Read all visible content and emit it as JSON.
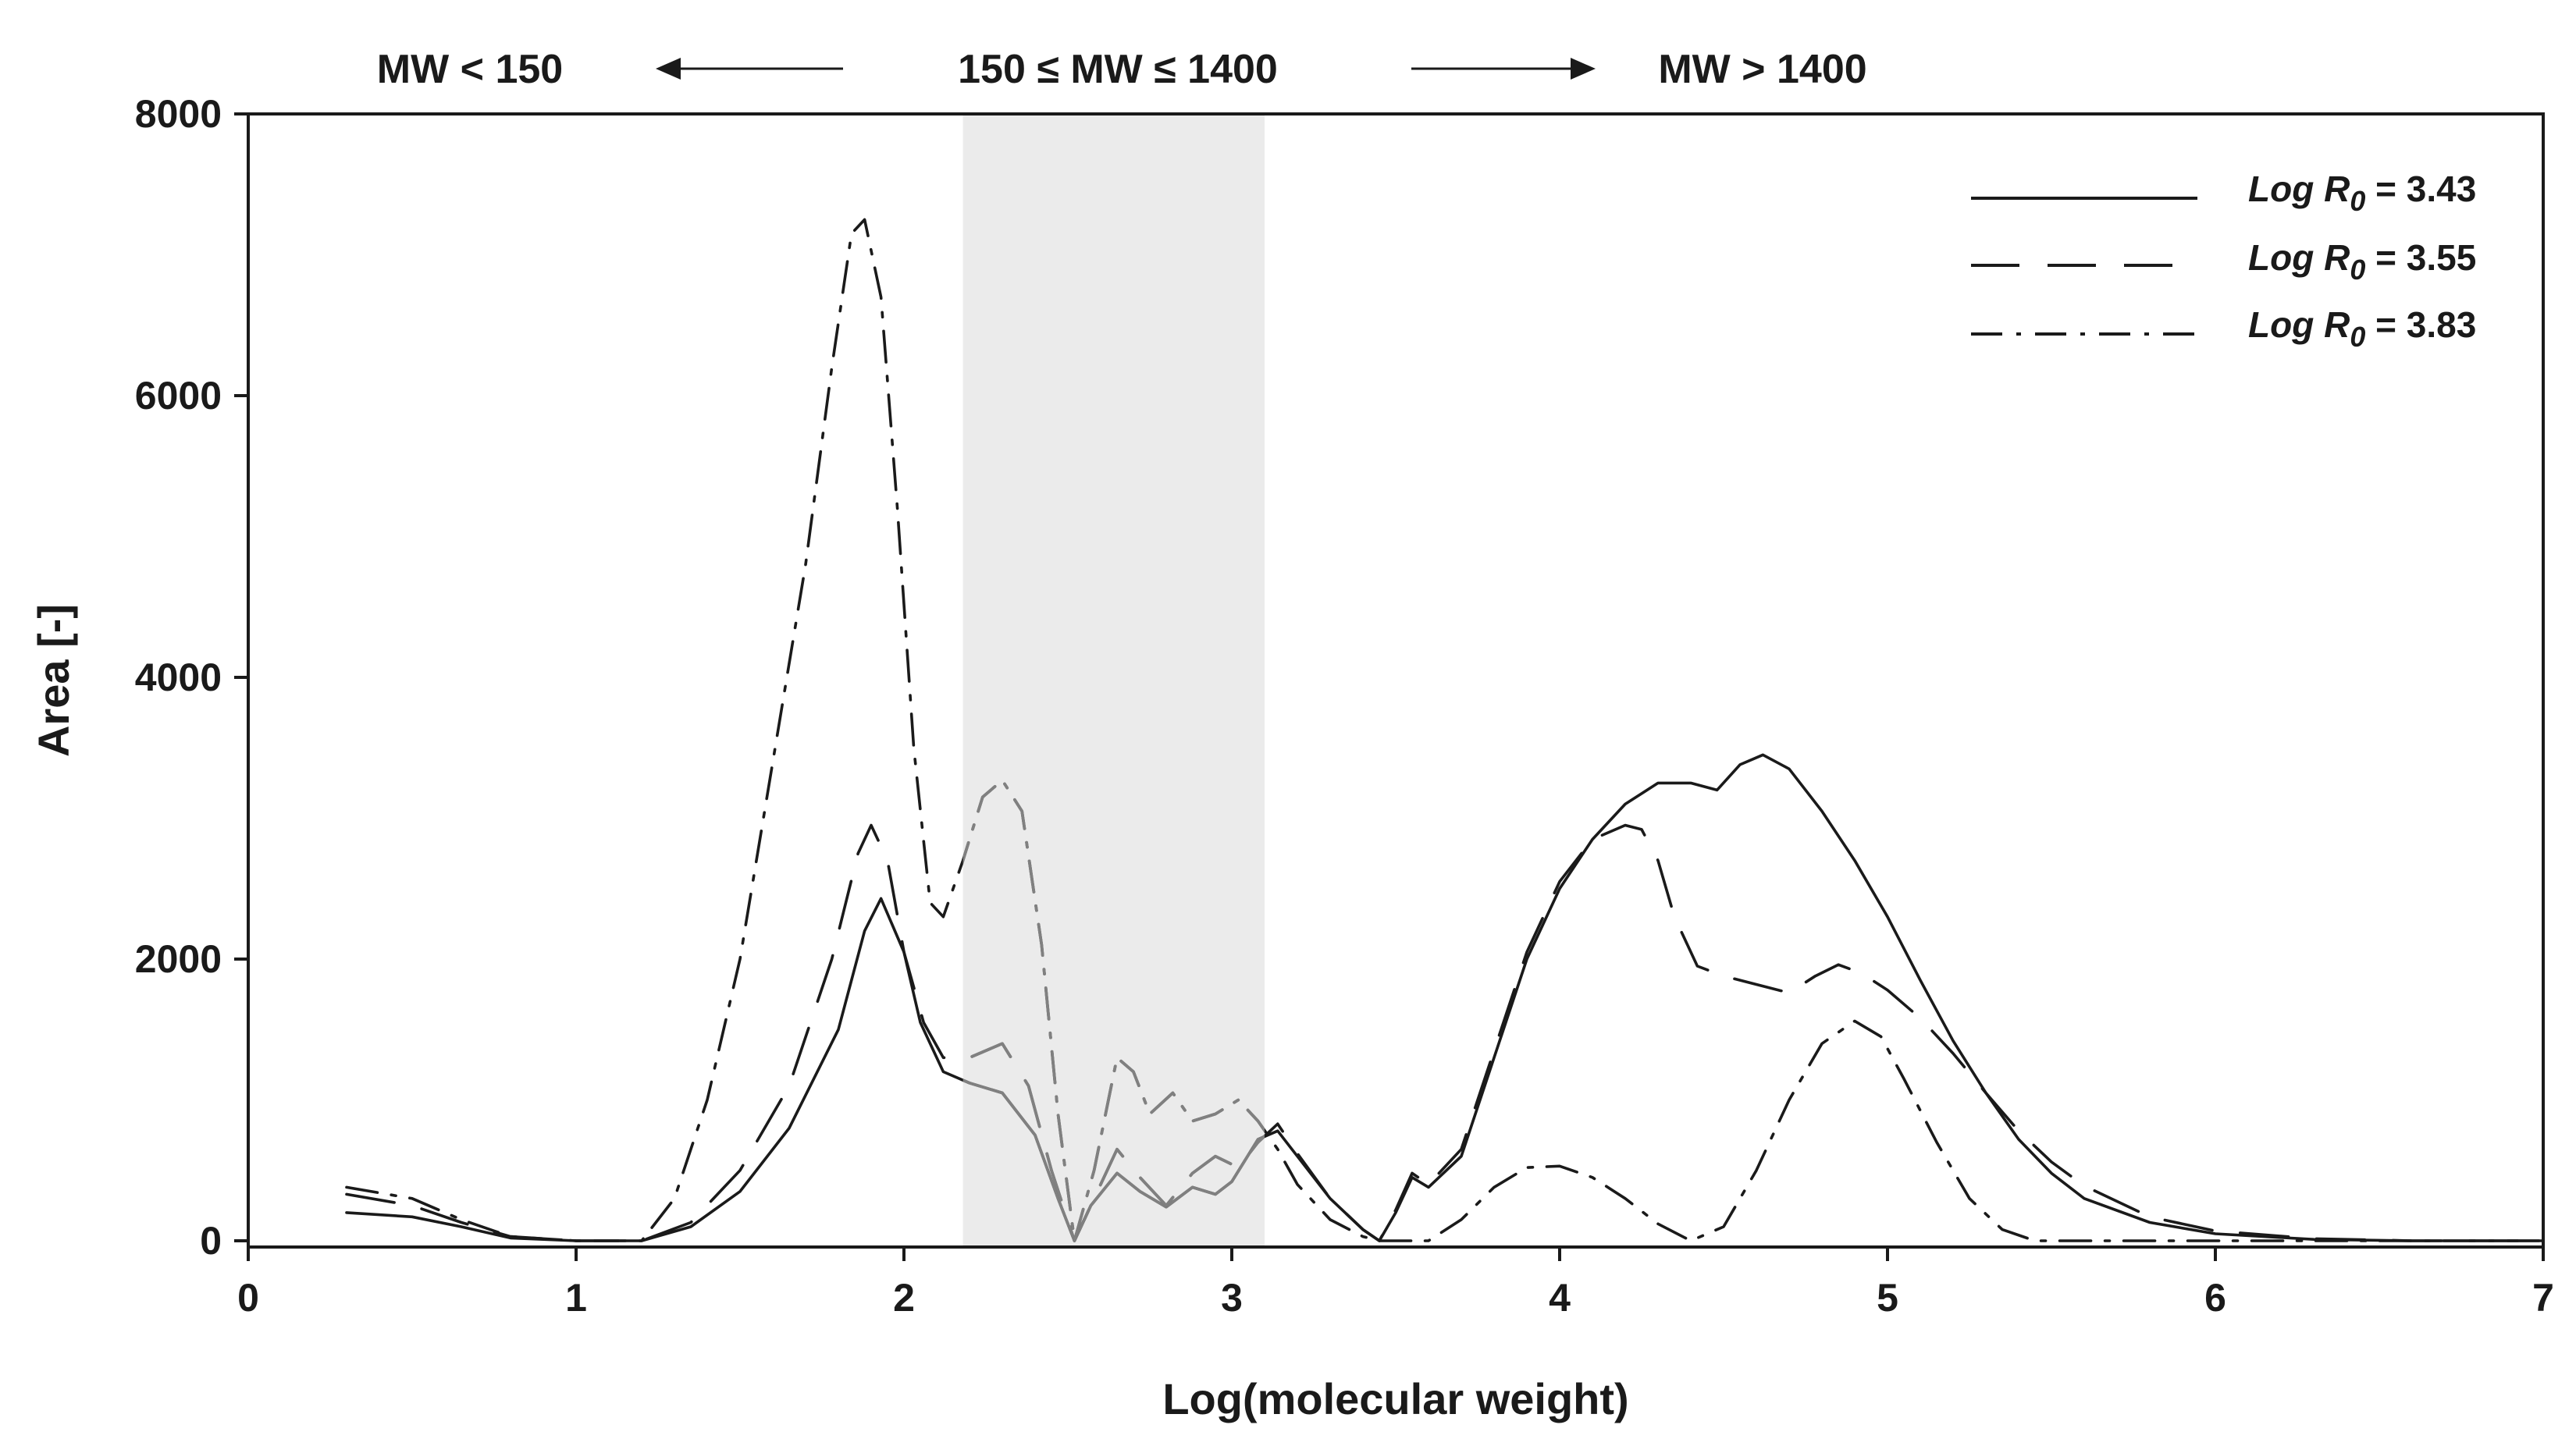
{
  "chart_data": {
    "type": "line",
    "title": "",
    "xlabel": "Log(molecular weight)",
    "ylabel": "Area [-]",
    "xlim": [
      0,
      7
    ],
    "ylim": [
      0,
      8000
    ],
    "xticks": [
      0,
      1,
      2,
      3,
      4,
      5,
      6,
      7
    ],
    "xtick_labels": [
      "0",
      "1",
      "2",
      "3",
      "4",
      "5",
      "6",
      "7"
    ],
    "yticks": [
      0,
      2000,
      4000,
      6000,
      8000
    ],
    "ytick_labels": [
      "0",
      "2000",
      "4000",
      "6000",
      "8000"
    ],
    "grid": false,
    "legend_position": "top-right",
    "shaded_region": {
      "x_start": 2.18,
      "x_end": 3.1,
      "color": "#ebebeb"
    },
    "annotations": {
      "left": "MW < 150",
      "middle": "150 ≤ MW ≤ 1400",
      "right": "MW > 1400"
    },
    "series": [
      {
        "name": "Log R0 = 3.43",
        "legend_prefix": "Log ",
        "legend_symbol": "R",
        "legend_subscript": "0",
        "legend_value": " = 3.43",
        "dash": "solid",
        "points": [
          [
            0.3,
            200
          ],
          [
            0.5,
            170
          ],
          [
            0.65,
            100
          ],
          [
            0.8,
            20
          ],
          [
            1.0,
            0
          ],
          [
            1.2,
            0
          ],
          [
            1.35,
            100
          ],
          [
            1.5,
            350
          ],
          [
            1.65,
            800
          ],
          [
            1.8,
            1500
          ],
          [
            1.88,
            2200
          ],
          [
            1.93,
            2430
          ],
          [
            2.0,
            2050
          ],
          [
            2.05,
            1550
          ],
          [
            2.12,
            1200
          ],
          [
            2.2,
            1120
          ],
          [
            2.3,
            1050
          ],
          [
            2.4,
            750
          ],
          [
            2.47,
            300
          ],
          [
            2.52,
            0
          ],
          [
            2.57,
            250
          ],
          [
            2.65,
            480
          ],
          [
            2.72,
            350
          ],
          [
            2.8,
            240
          ],
          [
            2.88,
            380
          ],
          [
            2.95,
            330
          ],
          [
            3.0,
            420
          ],
          [
            3.08,
            720
          ],
          [
            3.14,
            780
          ],
          [
            3.2,
            600
          ],
          [
            3.3,
            300
          ],
          [
            3.4,
            80
          ],
          [
            3.45,
            0
          ],
          [
            3.5,
            200
          ],
          [
            3.55,
            450
          ],
          [
            3.6,
            380
          ],
          [
            3.7,
            600
          ],
          [
            3.8,
            1300
          ],
          [
            3.9,
            2000
          ],
          [
            4.0,
            2500
          ],
          [
            4.1,
            2850
          ],
          [
            4.2,
            3100
          ],
          [
            4.3,
            3250
          ],
          [
            4.4,
            3250
          ],
          [
            4.48,
            3200
          ],
          [
            4.55,
            3380
          ],
          [
            4.62,
            3450
          ],
          [
            4.7,
            3350
          ],
          [
            4.8,
            3050
          ],
          [
            4.9,
            2700
          ],
          [
            5.0,
            2300
          ],
          [
            5.1,
            1850
          ],
          [
            5.2,
            1420
          ],
          [
            5.3,
            1050
          ],
          [
            5.4,
            720
          ],
          [
            5.5,
            480
          ],
          [
            5.6,
            300
          ],
          [
            5.8,
            130
          ],
          [
            6.0,
            50
          ],
          [
            6.3,
            10
          ],
          [
            6.6,
            0
          ],
          [
            7.0,
            0
          ]
        ]
      },
      {
        "name": "Log R0 = 3.55",
        "legend_prefix": "Log ",
        "legend_symbol": "R",
        "legend_subscript": "0",
        "legend_value": " = 3.55",
        "dash": "dashed",
        "points": [
          [
            0.3,
            330
          ],
          [
            0.5,
            250
          ],
          [
            0.65,
            130
          ],
          [
            0.8,
            30
          ],
          [
            1.0,
            0
          ],
          [
            1.2,
            0
          ],
          [
            1.35,
            130
          ],
          [
            1.5,
            500
          ],
          [
            1.65,
            1100
          ],
          [
            1.78,
            2000
          ],
          [
            1.86,
            2750
          ],
          [
            1.9,
            2950
          ],
          [
            1.95,
            2700
          ],
          [
            2.0,
            2050
          ],
          [
            2.06,
            1550
          ],
          [
            2.12,
            1300
          ],
          [
            2.2,
            1300
          ],
          [
            2.3,
            1400
          ],
          [
            2.38,
            1100
          ],
          [
            2.45,
            500
          ],
          [
            2.52,
            0
          ],
          [
            2.58,
            300
          ],
          [
            2.65,
            650
          ],
          [
            2.72,
            450
          ],
          [
            2.8,
            250
          ],
          [
            2.88,
            480
          ],
          [
            2.95,
            600
          ],
          [
            3.02,
            520
          ],
          [
            3.08,
            700
          ],
          [
            3.14,
            830
          ],
          [
            3.2,
            620
          ],
          [
            3.3,
            300
          ],
          [
            3.4,
            80
          ],
          [
            3.45,
            0
          ],
          [
            3.5,
            220
          ],
          [
            3.55,
            480
          ],
          [
            3.6,
            400
          ],
          [
            3.7,
            650
          ],
          [
            3.8,
            1350
          ],
          [
            3.9,
            2050
          ],
          [
            4.0,
            2550
          ],
          [
            4.1,
            2850
          ],
          [
            4.2,
            2950
          ],
          [
            4.25,
            2920
          ],
          [
            4.3,
            2700
          ],
          [
            4.35,
            2300
          ],
          [
            4.42,
            1950
          ],
          [
            4.5,
            1880
          ],
          [
            4.6,
            1820
          ],
          [
            4.7,
            1760
          ],
          [
            4.78,
            1880
          ],
          [
            4.85,
            1960
          ],
          [
            4.92,
            1900
          ],
          [
            5.0,
            1780
          ],
          [
            5.1,
            1580
          ],
          [
            5.2,
            1330
          ],
          [
            5.3,
            1050
          ],
          [
            5.4,
            780
          ],
          [
            5.5,
            560
          ],
          [
            5.6,
            390
          ],
          [
            5.8,
            170
          ],
          [
            6.0,
            70
          ],
          [
            6.3,
            15
          ],
          [
            6.6,
            0
          ],
          [
            7.0,
            0
          ]
        ]
      },
      {
        "name": "Log R0 = 3.83",
        "legend_prefix": "Log ",
        "legend_symbol": "R",
        "legend_subscript": "0",
        "legend_value": " = 3.83",
        "dash": "dashdot",
        "points": [
          [
            0.3,
            380
          ],
          [
            0.5,
            300
          ],
          [
            0.65,
            150
          ],
          [
            0.8,
            30
          ],
          [
            1.0,
            0
          ],
          [
            1.2,
            0
          ],
          [
            1.3,
            300
          ],
          [
            1.4,
            1000
          ],
          [
            1.5,
            2000
          ],
          [
            1.6,
            3400
          ],
          [
            1.7,
            4800
          ],
          [
            1.78,
            6200
          ],
          [
            1.84,
            7150
          ],
          [
            1.88,
            7250
          ],
          [
            1.93,
            6700
          ],
          [
            1.98,
            5200
          ],
          [
            2.03,
            3500
          ],
          [
            2.08,
            2400
          ],
          [
            2.12,
            2300
          ],
          [
            2.18,
            2700
          ],
          [
            2.24,
            3150
          ],
          [
            2.3,
            3270
          ],
          [
            2.36,
            3050
          ],
          [
            2.42,
            2100
          ],
          [
            2.47,
            900
          ],
          [
            2.52,
            0
          ],
          [
            2.58,
            500
          ],
          [
            2.65,
            1300
          ],
          [
            2.7,
            1200
          ],
          [
            2.75,
            900
          ],
          [
            2.82,
            1050
          ],
          [
            2.88,
            850
          ],
          [
            2.95,
            900
          ],
          [
            3.02,
            1000
          ],
          [
            3.08,
            850
          ],
          [
            3.14,
            650
          ],
          [
            3.2,
            400
          ],
          [
            3.3,
            150
          ],
          [
            3.4,
            30
          ],
          [
            3.45,
            0
          ],
          [
            3.6,
            0
          ],
          [
            3.7,
            150
          ],
          [
            3.8,
            380
          ],
          [
            3.9,
            520
          ],
          [
            4.0,
            530
          ],
          [
            4.1,
            450
          ],
          [
            4.2,
            300
          ],
          [
            4.3,
            120
          ],
          [
            4.4,
            0
          ],
          [
            4.5,
            100
          ],
          [
            4.6,
            500
          ],
          [
            4.7,
            1000
          ],
          [
            4.8,
            1400
          ],
          [
            4.9,
            1560
          ],
          [
            4.98,
            1450
          ],
          [
            5.05,
            1150
          ],
          [
            5.15,
            700
          ],
          [
            5.25,
            300
          ],
          [
            5.35,
            80
          ],
          [
            5.45,
            0
          ],
          [
            5.6,
            0
          ],
          [
            7.0,
            0
          ]
        ]
      }
    ]
  },
  "colors": {
    "line": "#1a1a1a",
    "line_in_region": "#808080",
    "shade": "#ebebeb",
    "frame": "#1a1a1a"
  }
}
